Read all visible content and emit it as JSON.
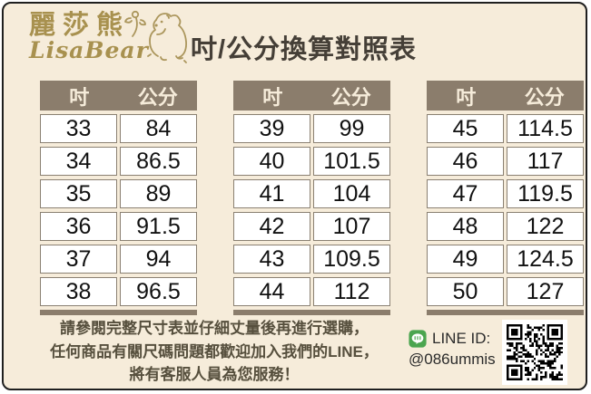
{
  "colors": {
    "background": "#f6ecda",
    "card_border": "#1f1f1f",
    "table_header_bg": "#8b7d6c",
    "table_header_text": "#f6ecda",
    "cell_bg": "#ffffff",
    "cell_border": "#8a8072",
    "cell_text": "#111111",
    "title_text": "#453f37",
    "note_text": "#564f3d",
    "logo_gold": "#a8914f",
    "line_green": "#4ba54f"
  },
  "brand": {
    "name_zh": "麗莎熊",
    "name_en": "LisaBear"
  },
  "page_title": "吋/公分換算對照表",
  "column_headers": {
    "inch": "吋",
    "cm": "公分"
  },
  "tables": [
    {
      "rows": [
        [
          "33",
          "84"
        ],
        [
          "34",
          "86.5"
        ],
        [
          "35",
          "89"
        ],
        [
          "36",
          "91.5"
        ],
        [
          "37",
          "94"
        ],
        [
          "38",
          "96.5"
        ]
      ]
    },
    {
      "rows": [
        [
          "39",
          "99"
        ],
        [
          "40",
          "101.5"
        ],
        [
          "41",
          "104"
        ],
        [
          "42",
          "107"
        ],
        [
          "43",
          "109.5"
        ],
        [
          "44",
          "112"
        ]
      ]
    },
    {
      "rows": [
        [
          "45",
          "114.5"
        ],
        [
          "46",
          "117"
        ],
        [
          "47",
          "119.5"
        ],
        [
          "48",
          "122"
        ],
        [
          "49",
          "124.5"
        ],
        [
          "50",
          "127"
        ]
      ]
    }
  ],
  "footer": {
    "note_line1": "請參閱完整尺寸表並仔細丈量後再進行選購，",
    "note_line2": "任何商品有關尺碼問題都歡迎加入我們的LINE，",
    "note_line3": "將有客服人員為您服務！",
    "line_label": "LINE ID:",
    "line_id": "@086ummis"
  },
  "chart_data": {
    "type": "table",
    "title": "吋/公分換算對照表",
    "columns": [
      "吋",
      "公分"
    ],
    "rows": [
      [
        33,
        84
      ],
      [
        34,
        86.5
      ],
      [
        35,
        89
      ],
      [
        36,
        91.5
      ],
      [
        37,
        94
      ],
      [
        38,
        96.5
      ],
      [
        39,
        99
      ],
      [
        40,
        101.5
      ],
      [
        41,
        104
      ],
      [
        42,
        107
      ],
      [
        43,
        109.5
      ],
      [
        44,
        112
      ],
      [
        45,
        114.5
      ],
      [
        46,
        117
      ],
      [
        47,
        119.5
      ],
      [
        48,
        122
      ],
      [
        49,
        124.5
      ],
      [
        50,
        127
      ]
    ]
  }
}
